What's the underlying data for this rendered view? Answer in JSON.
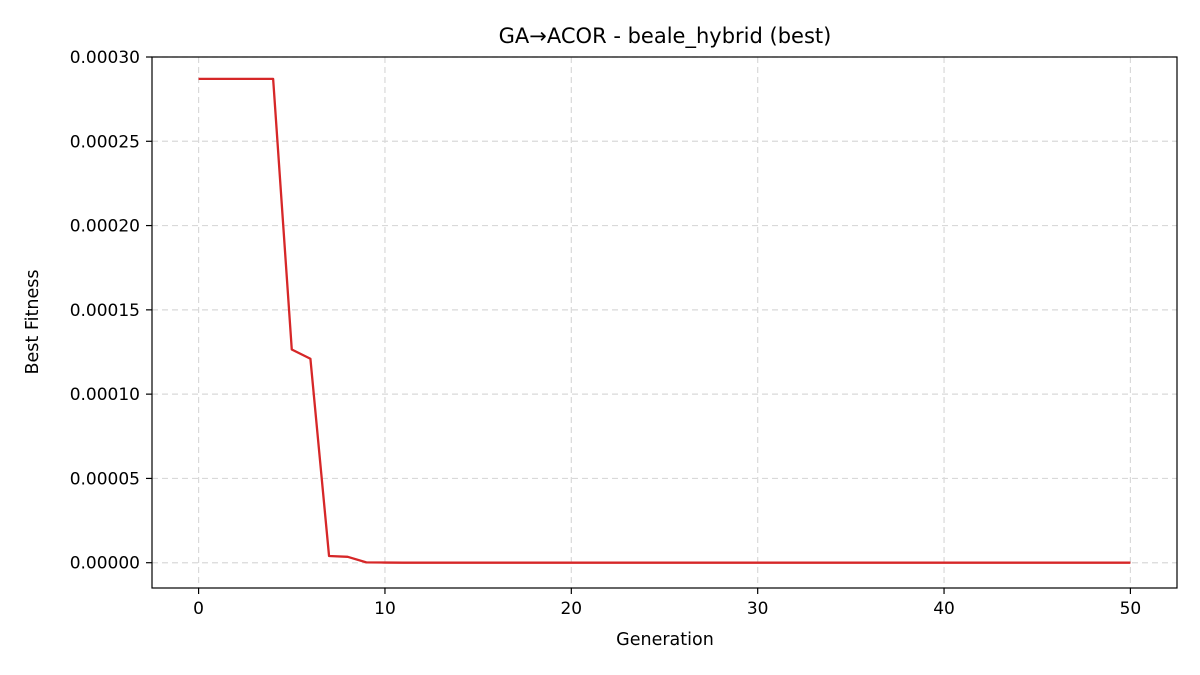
{
  "chart_data": {
    "type": "line",
    "title": "GA→ACOR - beale_hybrid (best)",
    "xlabel": "Generation",
    "ylabel": "Best Fitness",
    "xlim": [
      -2.5,
      52.5
    ],
    "ylim": [
      -1.5e-05,
      0.0003
    ],
    "xticks": [
      0,
      10,
      20,
      30,
      40,
      50
    ],
    "xtick_labels": [
      "0",
      "10",
      "20",
      "30",
      "40",
      "50"
    ],
    "yticks": [
      0,
      5e-05,
      0.0001,
      0.00015,
      0.0002,
      0.00025,
      0.0003
    ],
    "ytick_labels": [
      "0.00000",
      "0.00005",
      "0.00010",
      "0.00015",
      "0.00020",
      "0.00025",
      "0.00030"
    ],
    "grid": true,
    "series": [
      {
        "color": "#d62728",
        "x": [
          0,
          1,
          2,
          3,
          4,
          5,
          6,
          7,
          8,
          9,
          10,
          11,
          12,
          13,
          14,
          15,
          16,
          17,
          18,
          19,
          20,
          21,
          22,
          23,
          24,
          25,
          26,
          27,
          28,
          29,
          30,
          31,
          32,
          33,
          34,
          35,
          36,
          37,
          38,
          39,
          40,
          41,
          42,
          43,
          44,
          45,
          46,
          47,
          48,
          49,
          50
        ],
        "y": [
          0.000287,
          0.000287,
          0.000287,
          0.000287,
          0.000287,
          0.0001265,
          0.000121,
          4e-06,
          3.5e-06,
          2e-07,
          1e-07,
          0,
          0,
          0,
          0,
          0,
          0,
          0,
          0,
          0,
          0,
          0,
          0,
          0,
          0,
          0,
          0,
          0,
          0,
          0,
          0,
          0,
          0,
          0,
          0,
          0,
          0,
          0,
          0,
          0,
          0,
          0,
          0,
          0,
          0,
          0,
          0,
          0,
          0,
          0,
          0
        ]
      }
    ]
  }
}
